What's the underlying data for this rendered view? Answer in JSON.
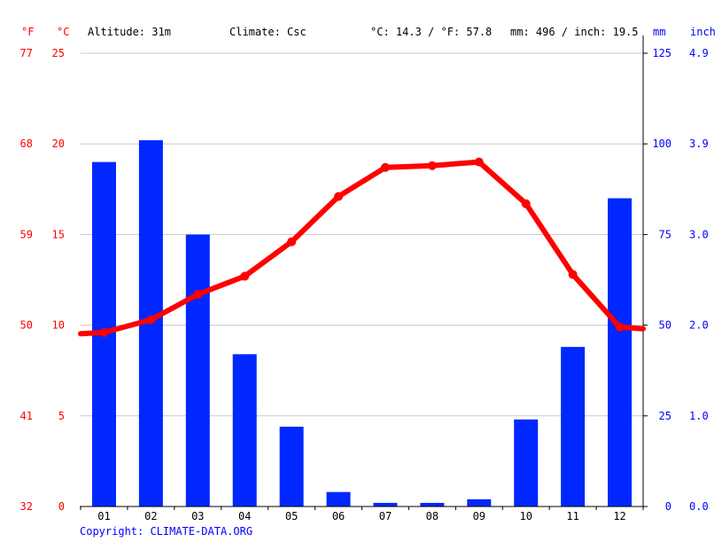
{
  "header": {
    "f_unit": "°F",
    "c_unit": "°C",
    "altitude": "Altitude: 31m",
    "climate": "Climate: Csc",
    "avg_temp": "°C: 14.3 / °F: 57.8",
    "precip_total": "mm: 496 / inch: 19.5",
    "mm_unit": "mm",
    "inch_unit": "inch"
  },
  "footer": {
    "copyright": "Copyright: CLIMATE-DATA.ORG"
  },
  "colors": {
    "temp_line": "#ff0000",
    "precip_bar": "#0027ff",
    "grid": "#c8c8c8",
    "left_axis": "#ff0000",
    "right_axis": "#0000ff"
  },
  "chart_data": {
    "type": "bar",
    "categories": [
      "01",
      "02",
      "03",
      "04",
      "05",
      "06",
      "07",
      "08",
      "09",
      "10",
      "11",
      "12"
    ],
    "series": [
      {
        "type": "bar",
        "axis": "right-mm",
        "values": [
          95,
          101,
          75,
          42,
          22,
          4,
          1,
          1,
          2,
          24,
          44,
          85
        ]
      },
      {
        "type": "line",
        "axis": "left-celsius",
        "values": [
          9.6,
          10.3,
          11.7,
          12.7,
          14.6,
          17.1,
          18.7,
          18.8,
          19.0,
          16.7,
          12.8,
          9.9
        ]
      }
    ],
    "y_left_celsius": {
      "ticks": [
        "0",
        "5",
        "10",
        "15",
        "20",
        "25"
      ],
      "range": [
        0,
        25
      ]
    },
    "y_left_fahrenheit": {
      "ticks": [
        "32",
        "41",
        "50",
        "59",
        "68",
        "77"
      ]
    },
    "y_right_mm": {
      "ticks": [
        "0",
        "25",
        "50",
        "75",
        "100",
        "125"
      ],
      "range": [
        0,
        125
      ]
    },
    "y_right_inch": {
      "ticks": [
        "0.0",
        "1.0",
        "2.0",
        "3.0",
        "3.9",
        "4.9"
      ]
    },
    "grid": true
  }
}
